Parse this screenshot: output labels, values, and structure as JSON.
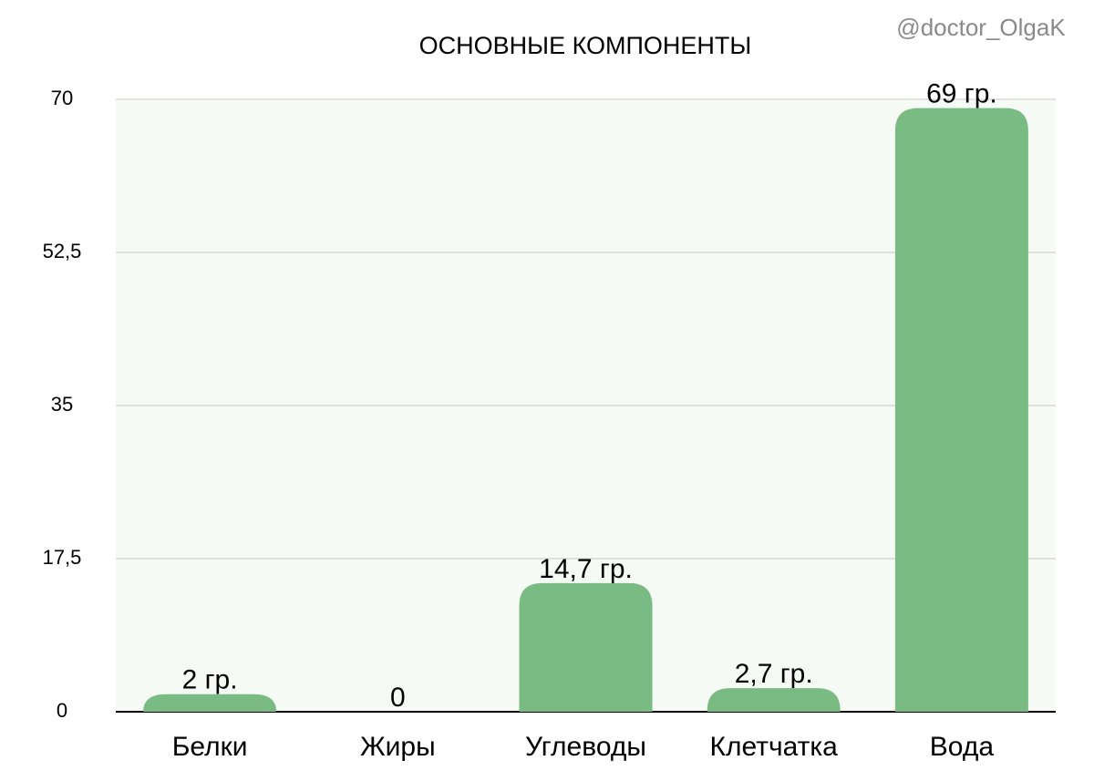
{
  "chart_data": {
    "type": "bar",
    "title": "ОСНОВНЫЕ КОМПОНЕНТЫ",
    "watermark": "@doctor_OlgaK",
    "categories": [
      "Белки",
      "Жиры",
      "Углеводы",
      "Клетчатка",
      "Вода"
    ],
    "values": [
      2,
      0,
      14.7,
      2.7,
      69
    ],
    "value_labels": [
      "2 гр.",
      "0",
      "14,7 гр.",
      "2,7 гр.",
      "69 гр."
    ],
    "color": "#79bb83",
    "ylim": [
      0,
      70
    ],
    "yticks": [
      0,
      {
        "value": 17.5,
        "label": "17,5"
      },
      35,
      {
        "value": 52.5,
        "label": "52,5"
      },
      70
    ],
    "grid": true
  }
}
